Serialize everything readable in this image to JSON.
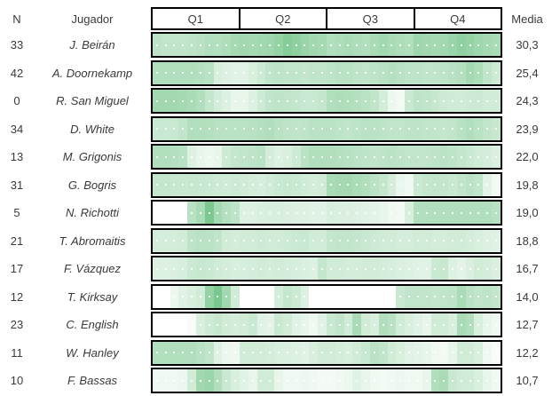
{
  "header": {
    "n_label": "N",
    "player_label": "Jugador",
    "quarters": [
      "Q1",
      "Q2",
      "Q3",
      "Q4"
    ],
    "media_label": "Media"
  },
  "colors": {
    "heat_max": "#63BE7B",
    "heat_min": "#FFFFFF",
    "grid_border": "#000000",
    "text": "#3A3A3A"
  },
  "chart_data": {
    "type": "heatmap",
    "columns": [
      "N",
      "Jugador",
      "Q1",
      "Q2",
      "Q3",
      "Q4",
      "Media"
    ],
    "x_minutes_range": [
      1,
      40
    ],
    "minutes_per_quarter": 10,
    "intensity_scale": "0 = white (no activity), 1 = full green (#63BE7B)",
    "rows": [
      {
        "n": "33",
        "player": "J. Beirán",
        "media": "30,3",
        "intensity": [
          0.42,
          0.4,
          0.4,
          0.4,
          0.42,
          0.45,
          0.5,
          0.48,
          0.52,
          0.58,
          0.6,
          0.58,
          0.6,
          0.62,
          0.68,
          0.78,
          0.72,
          0.65,
          0.6,
          0.58,
          0.5,
          0.52,
          0.55,
          0.52,
          0.5,
          0.55,
          0.6,
          0.55,
          0.52,
          0.5,
          0.62,
          0.6,
          0.58,
          0.6,
          0.65,
          0.72,
          0.68,
          0.62,
          0.58,
          0.55
        ]
      },
      {
        "n": "42",
        "player": "A. Doornekamp",
        "media": "25,4",
        "intensity": [
          0.5,
          0.5,
          0.5,
          0.5,
          0.5,
          0.48,
          0.45,
          0.25,
          0.22,
          0.2,
          0.2,
          0.25,
          0.32,
          0.4,
          0.42,
          0.4,
          0.4,
          0.38,
          0.4,
          0.4,
          0.42,
          0.45,
          0.45,
          0.42,
          0.4,
          0.42,
          0.45,
          0.48,
          0.45,
          0.42,
          0.42,
          0.4,
          0.4,
          0.42,
          0.45,
          0.48,
          0.58,
          0.52,
          0.4,
          0.32
        ]
      },
      {
        "n": "0",
        "player": "R. San Miguel",
        "media": "24,3",
        "intensity": [
          0.6,
          0.6,
          0.6,
          0.58,
          0.55,
          0.5,
          0.38,
          0.28,
          0.22,
          0.15,
          0.15,
          0.22,
          0.32,
          0.4,
          0.42,
          0.4,
          0.38,
          0.35,
          0.35,
          0.38,
          0.5,
          0.52,
          0.5,
          0.48,
          0.45,
          0.4,
          0.28,
          0.12,
          0.08,
          0.35,
          0.42,
          0.4,
          0.36,
          0.32,
          0.3,
          0.3,
          0.32,
          0.33,
          0.3,
          0.3
        ]
      },
      {
        "n": "34",
        "player": "D. White",
        "media": "23,9",
        "intensity": [
          0.35,
          0.34,
          0.35,
          0.4,
          0.5,
          0.5,
          0.48,
          0.45,
          0.45,
          0.45,
          0.45,
          0.46,
          0.48,
          0.5,
          0.45,
          0.42,
          0.4,
          0.42,
          0.45,
          0.44,
          0.44,
          0.42,
          0.4,
          0.42,
          0.45,
          0.44,
          0.42,
          0.4,
          0.4,
          0.42,
          0.42,
          0.4,
          0.4,
          0.38,
          0.4,
          0.45,
          0.5,
          0.45,
          0.4,
          0.36
        ]
      },
      {
        "n": "13",
        "player": "M. Grigonis",
        "media": "22,0",
        "intensity": [
          0.5,
          0.5,
          0.48,
          0.45,
          0.22,
          0.15,
          0.12,
          0.15,
          0.32,
          0.38,
          0.4,
          0.42,
          0.44,
          0.28,
          0.22,
          0.25,
          0.32,
          0.45,
          0.5,
          0.5,
          0.5,
          0.48,
          0.46,
          0.44,
          0.42,
          0.4,
          0.42,
          0.44,
          0.42,
          0.4,
          0.4,
          0.4,
          0.42,
          0.44,
          0.42,
          0.38,
          0.34,
          0.3,
          0.28,
          0.24
        ]
      },
      {
        "n": "31",
        "player": "G. Bogris",
        "media": "19,8",
        "intensity": [
          0.38,
          0.38,
          0.36,
          0.35,
          0.36,
          0.36,
          0.34,
          0.32,
          0.3,
          0.32,
          0.3,
          0.28,
          0.26,
          0.3,
          0.34,
          0.36,
          0.34,
          0.3,
          0.28,
          0.3,
          0.55,
          0.58,
          0.58,
          0.54,
          0.5,
          0.44,
          0.38,
          0.28,
          0.14,
          0.1,
          0.34,
          0.38,
          0.4,
          0.38,
          0.35,
          0.4,
          0.44,
          0.4,
          0.18,
          0.08
        ]
      },
      {
        "n": "5",
        "player": "N. Richotti",
        "media": "19,0",
        "intensity": [
          0.0,
          0.0,
          0.0,
          0.0,
          0.45,
          0.55,
          0.85,
          0.58,
          0.48,
          0.42,
          0.22,
          0.22,
          0.24,
          0.25,
          0.25,
          0.24,
          0.22,
          0.22,
          0.2,
          0.2,
          0.25,
          0.24,
          0.24,
          0.22,
          0.2,
          0.18,
          0.15,
          0.1,
          0.08,
          0.25,
          0.5,
          0.5,
          0.5,
          0.5,
          0.5,
          0.5,
          0.5,
          0.5,
          0.5,
          0.46
        ]
      },
      {
        "n": "21",
        "player": "T. Abromaitis",
        "media": "18,8",
        "intensity": [
          0.28,
          0.28,
          0.28,
          0.3,
          0.42,
          0.45,
          0.44,
          0.4,
          0.3,
          0.28,
          0.3,
          0.3,
          0.32,
          0.3,
          0.3,
          0.32,
          0.34,
          0.35,
          0.3,
          0.3,
          0.38,
          0.4,
          0.4,
          0.38,
          0.35,
          0.32,
          0.3,
          0.3,
          0.28,
          0.28,
          0.3,
          0.3,
          0.28,
          0.28,
          0.3,
          0.3,
          0.28,
          0.25,
          0.22,
          0.2
        ]
      },
      {
        "n": "17",
        "player": "F. Vázquez",
        "media": "16,7",
        "intensity": [
          0.22,
          0.22,
          0.24,
          0.26,
          0.34,
          0.36,
          0.34,
          0.3,
          0.28,
          0.25,
          0.26,
          0.28,
          0.3,
          0.28,
          0.3,
          0.28,
          0.26,
          0.24,
          0.22,
          0.38,
          0.3,
          0.3,
          0.28,
          0.28,
          0.3,
          0.3,
          0.28,
          0.26,
          0.24,
          0.22,
          0.2,
          0.2,
          0.34,
          0.36,
          0.22,
          0.18,
          0.24,
          0.3,
          0.28,
          0.24
        ]
      },
      {
        "n": "12",
        "player": "T. Kirksay",
        "media": "14,0",
        "intensity": [
          0.0,
          0.0,
          0.12,
          0.2,
          0.25,
          0.3,
          0.7,
          0.85,
          0.6,
          0.3,
          0.0,
          0.0,
          0.0,
          0.0,
          0.28,
          0.38,
          0.32,
          0.22,
          0.0,
          0.0,
          0.0,
          0.0,
          0.0,
          0.0,
          0.0,
          0.0,
          0.0,
          0.0,
          0.35,
          0.4,
          0.4,
          0.4,
          0.38,
          0.4,
          0.42,
          0.55,
          0.45,
          0.4,
          0.42,
          0.38
        ]
      },
      {
        "n": "23",
        "player": "C. English",
        "media": "12,7",
        "intensity": [
          0.0,
          0.0,
          0.0,
          0.0,
          0.05,
          0.25,
          0.32,
          0.36,
          0.3,
          0.28,
          0.3,
          0.34,
          0.2,
          0.18,
          0.34,
          0.3,
          0.2,
          0.15,
          0.1,
          0.2,
          0.35,
          0.4,
          0.3,
          0.55,
          0.3,
          0.25,
          0.5,
          0.45,
          0.3,
          0.25,
          0.2,
          0.15,
          0.3,
          0.3,
          0.25,
          0.55,
          0.5,
          0.25,
          0.15,
          0.1
        ]
      },
      {
        "n": "11",
        "player": "W. Hanley",
        "media": "12,2",
        "intensity": [
          0.5,
          0.5,
          0.5,
          0.5,
          0.5,
          0.45,
          0.4,
          0.2,
          0.12,
          0.1,
          0.3,
          0.3,
          0.3,
          0.28,
          0.25,
          0.24,
          0.22,
          0.2,
          0.25,
          0.3,
          0.3,
          0.28,
          0.25,
          0.3,
          0.35,
          0.45,
          0.4,
          0.3,
          0.25,
          0.2,
          0.18,
          0.15,
          0.1,
          0.08,
          0.15,
          0.3,
          0.3,
          0.25,
          0.1,
          0.05
        ]
      },
      {
        "n": "10",
        "player": "F. Bassas",
        "media": "10,7",
        "intensity": [
          0.1,
          0.1,
          0.1,
          0.12,
          0.3,
          0.6,
          0.65,
          0.5,
          0.35,
          0.25,
          0.2,
          0.15,
          0.3,
          0.3,
          0.15,
          0.1,
          0.1,
          0.12,
          0.1,
          0.08,
          0.08,
          0.1,
          0.12,
          0.2,
          0.15,
          0.1,
          0.08,
          0.1,
          0.12,
          0.1,
          0.1,
          0.15,
          0.5,
          0.55,
          0.35,
          0.3,
          0.3,
          0.25,
          0.15,
          0.1
        ]
      }
    ]
  }
}
